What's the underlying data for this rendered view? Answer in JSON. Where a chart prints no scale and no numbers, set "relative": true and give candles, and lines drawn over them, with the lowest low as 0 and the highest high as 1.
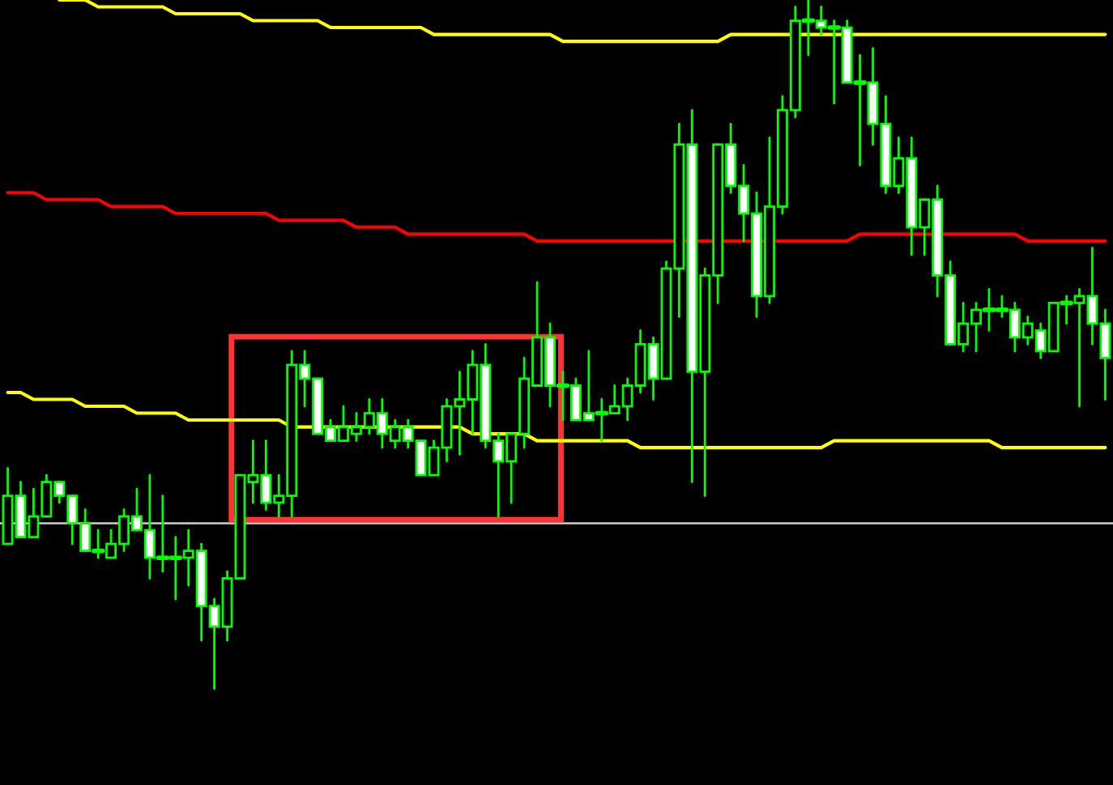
{
  "chart_data": {
    "type": "candlestick",
    "relative": true,
    "categories": [
      null,
      null,
      null,
      null,
      null,
      null,
      null,
      null,
      null,
      null,
      null,
      null,
      null,
      null,
      null,
      null,
      null,
      null,
      null,
      null,
      null,
      null,
      null,
      null,
      null,
      null,
      null,
      null,
      null,
      null,
      null,
      null,
      null,
      null,
      null,
      null,
      null,
      null,
      null,
      null,
      null,
      null,
      null,
      null,
      null,
      null,
      null,
      null,
      null,
      null,
      null,
      null,
      null,
      null,
      null,
      null,
      null,
      null,
      null,
      null,
      null,
      null,
      null,
      null,
      null,
      null,
      null,
      null,
      null,
      null,
      null,
      null,
      null,
      null,
      null,
      null,
      null,
      null,
      null,
      null,
      null,
      null,
      null,
      null,
      null,
      null
    ],
    "ohlc": [
      [
        0.21,
        0.32,
        0.21,
        0.28
      ],
      [
        0.28,
        0.3,
        0.22,
        0.22
      ],
      [
        0.22,
        0.29,
        0.22,
        0.25
      ],
      [
        0.25,
        0.31,
        0.25,
        0.3
      ],
      [
        0.3,
        0.3,
        0.27,
        0.28
      ],
      [
        0.28,
        0.28,
        0.21,
        0.24
      ],
      [
        0.24,
        0.26,
        0.2,
        0.2
      ],
      [
        0.2,
        0.23,
        0.19,
        0.2
      ],
      [
        0.19,
        0.23,
        0.19,
        0.21
      ],
      [
        0.21,
        0.26,
        0.2,
        0.25
      ],
      [
        0.25,
        0.29,
        0.23,
        0.23
      ],
      [
        0.23,
        0.31,
        0.16,
        0.19
      ],
      [
        0.19,
        0.28,
        0.17,
        0.19
      ],
      [
        0.19,
        0.22,
        0.13,
        0.19
      ],
      [
        0.19,
        0.23,
        0.15,
        0.2
      ],
      [
        0.2,
        0.21,
        0.07,
        0.12
      ],
      [
        0.12,
        0.13,
        0,
        0.09
      ],
      [
        0.09,
        0.17,
        0.07,
        0.16
      ],
      [
        0.16,
        0.31,
        0.16,
        0.31
      ],
      [
        0.3,
        0.36,
        0.27,
        0.31
      ],
      [
        0.31,
        0.36,
        0.26,
        0.27
      ],
      [
        0.27,
        0.31,
        0.25,
        0.28
      ],
      [
        0.28,
        0.49,
        0.25,
        0.47
      ],
      [
        0.47,
        0.49,
        0.41,
        0.45
      ],
      [
        0.45,
        0.45,
        0.37,
        0.37
      ],
      [
        0.38,
        0.39,
        0.36,
        0.36
      ],
      [
        0.36,
        0.41,
        0.36,
        0.38
      ],
      [
        0.37,
        0.4,
        0.36,
        0.38
      ],
      [
        0.38,
        0.42,
        0.37,
        0.4
      ],
      [
        0.4,
        0.42,
        0.35,
        0.37
      ],
      [
        0.36,
        0.39,
        0.35,
        0.38
      ],
      [
        0.38,
        0.39,
        0.35,
        0.36
      ],
      [
        0.36,
        0.36,
        0.31,
        0.31
      ],
      [
        0.31,
        0.36,
        0.31,
        0.35
      ],
      [
        0.35,
        0.42,
        0.33,
        0.41
      ],
      [
        0.41,
        0.46,
        0.34,
        0.42
      ],
      [
        0.42,
        0.49,
        0.37,
        0.47
      ],
      [
        0.47,
        0.5,
        0.35,
        0.36
      ],
      [
        0.36,
        0.37,
        0.25,
        0.33
      ],
      [
        0.33,
        0.37,
        0.27,
        0.37
      ],
      [
        0.37,
        0.48,
        0.35,
        0.45
      ],
      [
        0.44,
        0.59,
        0.44,
        0.51
      ],
      [
        0.51,
        0.53,
        0.41,
        0.44
      ],
      [
        0.44,
        0.46,
        0.39,
        0.44
      ],
      [
        0.44,
        0.45,
        0.39,
        0.39
      ],
      [
        0.4,
        0.49,
        0.39,
        0.39
      ],
      [
        0.4,
        0.42,
        0.36,
        0.4
      ],
      [
        0.4,
        0.44,
        0.4,
        0.41
      ],
      [
        0.41,
        0.45,
        0.39,
        0.44
      ],
      [
        0.44,
        0.52,
        0.43,
        0.5
      ],
      [
        0.5,
        0.51,
        0.42,
        0.45
      ],
      [
        0.45,
        0.62,
        0.45,
        0.61
      ],
      [
        0.61,
        0.82,
        0.54,
        0.79
      ],
      [
        0.79,
        0.84,
        0.3,
        0.46
      ],
      [
        0.46,
        0.61,
        0.28,
        0.6
      ],
      [
        0.6,
        0.79,
        0.56,
        0.79
      ],
      [
        0.79,
        0.82,
        0.72,
        0.73
      ],
      [
        0.73,
        0.76,
        0.65,
        0.69
      ],
      [
        0.69,
        0.72,
        0.54,
        0.57
      ],
      [
        0.57,
        0.8,
        0.56,
        0.7
      ],
      [
        0.7,
        0.86,
        0.69,
        0.84
      ],
      [
        0.84,
        0.99,
        0.83,
        0.97
      ],
      [
        0.97,
        1,
        0.92,
        0.97
      ],
      [
        0.97,
        0.99,
        0.95,
        0.96
      ],
      [
        0.96,
        0.97,
        0.85,
        0.96
      ],
      [
        0.96,
        0.97,
        0.88,
        0.88
      ],
      [
        0.88,
        0.92,
        0.76,
        0.88
      ],
      [
        0.88,
        0.93,
        0.79,
        0.82
      ],
      [
        0.82,
        0.86,
        0.72,
        0.73
      ],
      [
        0.73,
        0.8,
        0.72,
        0.77
      ],
      [
        0.77,
        0.8,
        0.63,
        0.67
      ],
      [
        0.67,
        0.71,
        0.63,
        0.71
      ],
      [
        0.71,
        0.73,
        0.57,
        0.6
      ],
      [
        0.6,
        0.62,
        0.5,
        0.5
      ],
      [
        0.5,
        0.56,
        0.49,
        0.53
      ],
      [
        0.53,
        0.56,
        0.49,
        0.55
      ],
      [
        0.55,
        0.58,
        0.52,
        0.55
      ],
      [
        0.55,
        0.57,
        0.54,
        0.55
      ],
      [
        0.55,
        0.56,
        0.49,
        0.51
      ],
      [
        0.51,
        0.54,
        0.5,
        0.53
      ],
      [
        0.52,
        0.53,
        0.48,
        0.49
      ],
      [
        0.49,
        0.56,
        0.49,
        0.56
      ],
      [
        0.56,
        0.57,
        0.53,
        0.56
      ],
      [
        0.56,
        0.58,
        0.41,
        0.57
      ],
      [
        0.57,
        0.64,
        0.5,
        0.53
      ],
      [
        0.53,
        0.55,
        0.42,
        0.48
      ]
    ],
    "series": [
      {
        "type": "line",
        "color": "#ffff00",
        "values": [
          null,
          null,
          null,
          null,
          1.0,
          1.0,
          1.0,
          0.99,
          0.99,
          0.99,
          0.99,
          0.99,
          0.99,
          0.98,
          0.98,
          0.98,
          0.98,
          0.98,
          0.98,
          0.97,
          0.97,
          0.97,
          0.97,
          0.97,
          0.97,
          0.96,
          0.96,
          0.96,
          0.96,
          0.96,
          0.96,
          0.96,
          0.96,
          0.95,
          0.95,
          0.95,
          0.95,
          0.95,
          0.95,
          0.95,
          0.95,
          0.95,
          0.95,
          0.94,
          0.94,
          0.94,
          0.94,
          0.94,
          0.94,
          0.94,
          0.94,
          0.94,
          0.94,
          0.94,
          0.94,
          0.94,
          0.95,
          0.95,
          0.95,
          0.95,
          0.95,
          0.95,
          0.95,
          0.95,
          0.95,
          0.95,
          0.95,
          0.95,
          0.95,
          0.95,
          0.95,
          0.95,
          0.95,
          0.95,
          0.95,
          0.95,
          0.95,
          0.95,
          0.95,
          0.95,
          0.95,
          0.95,
          0.95,
          0.95,
          0.95,
          0.95
        ]
      },
      {
        "type": "line",
        "color": "#ff0000",
        "values": [
          0.72,
          0.72,
          0.72,
          0.71,
          0.71,
          0.71,
          0.71,
          0.71,
          0.7,
          0.7,
          0.7,
          0.7,
          0.7,
          0.69,
          0.69,
          0.69,
          0.69,
          0.69,
          0.69,
          0.69,
          0.69,
          0.68,
          0.68,
          0.68,
          0.68,
          0.68,
          0.68,
          0.67,
          0.67,
          0.67,
          0.67,
          0.66,
          0.66,
          0.66,
          0.66,
          0.66,
          0.66,
          0.66,
          0.66,
          0.66,
          0.66,
          0.65,
          0.65,
          0.65,
          0.65,
          0.65,
          0.65,
          0.65,
          0.65,
          0.65,
          0.65,
          0.65,
          0.65,
          0.65,
          0.65,
          0.65,
          0.65,
          0.65,
          0.65,
          0.65,
          0.65,
          0.65,
          0.65,
          0.65,
          0.65,
          0.65,
          0.66,
          0.66,
          0.66,
          0.66,
          0.66,
          0.66,
          0.66,
          0.66,
          0.66,
          0.66,
          0.66,
          0.66,
          0.66,
          0.65,
          0.65,
          0.65,
          0.65,
          0.65,
          0.65,
          0.65
        ]
      },
      {
        "type": "line",
        "color": "#ffff00",
        "values": [
          0.43,
          0.43,
          0.42,
          0.42,
          0.42,
          0.42,
          0.41,
          0.41,
          0.41,
          0.41,
          0.4,
          0.4,
          0.4,
          0.4,
          0.39,
          0.39,
          0.39,
          0.39,
          0.39,
          0.39,
          0.39,
          0.39,
          0.38,
          0.38,
          0.38,
          0.38,
          0.38,
          0.38,
          0.38,
          0.38,
          0.38,
          0.38,
          0.38,
          0.38,
          0.38,
          0.38,
          0.37,
          0.37,
          0.37,
          0.37,
          0.37,
          0.36,
          0.36,
          0.36,
          0.36,
          0.36,
          0.36,
          0.36,
          0.36,
          0.35,
          0.35,
          0.35,
          0.35,
          0.35,
          0.35,
          0.35,
          0.35,
          0.35,
          0.35,
          0.35,
          0.35,
          0.35,
          0.35,
          0.35,
          0.36,
          0.36,
          0.36,
          0.36,
          0.36,
          0.36,
          0.36,
          0.36,
          0.36,
          0.36,
          0.36,
          0.36,
          0.36,
          0.35,
          0.35,
          0.35,
          0.35,
          0.35,
          0.35,
          0.35,
          0.35,
          0.35
        ]
      }
    ],
    "ref_lines": [
      {
        "axis": "y",
        "value": 0.24,
        "color": "#c0c0c0"
      }
    ]
  }
}
